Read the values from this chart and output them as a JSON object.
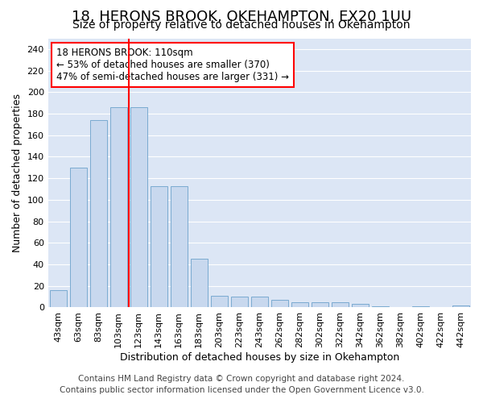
{
  "title": "18, HERONS BROOK, OKEHAMPTON, EX20 1UU",
  "subtitle": "Size of property relative to detached houses in Okehampton",
  "xlabel": "Distribution of detached houses by size in Okehampton",
  "ylabel": "Number of detached properties",
  "footnote1": "Contains HM Land Registry data © Crown copyright and database right 2024.",
  "footnote2": "Contains public sector information licensed under the Open Government Licence v3.0.",
  "categories": [
    "43sqm",
    "63sqm",
    "83sqm",
    "103sqm",
    "123sqm",
    "143sqm",
    "163sqm",
    "183sqm",
    "203sqm",
    "223sqm",
    "243sqm",
    "262sqm",
    "282sqm",
    "302sqm",
    "322sqm",
    "342sqm",
    "362sqm",
    "382sqm",
    "402sqm",
    "422sqm",
    "442sqm"
  ],
  "values": [
    16,
    130,
    174,
    186,
    186,
    113,
    113,
    45,
    11,
    10,
    10,
    7,
    5,
    5,
    5,
    3,
    1,
    0,
    1,
    0,
    2
  ],
  "bar_color": "#c8d8ee",
  "bar_edge_color": "#7aaad0",
  "vline_color": "red",
  "vline_pos": 3.5,
  "annotation_title": "18 HERONS BROOK: 110sqm",
  "annotation_line1": "← 53% of detached houses are smaller (370)",
  "annotation_line2": "47% of semi-detached houses are larger (331) →",
  "ylim": [
    0,
    250
  ],
  "yticks": [
    0,
    20,
    40,
    60,
    80,
    100,
    120,
    140,
    160,
    180,
    200,
    220,
    240
  ],
  "fig_bg_color": "#ffffff",
  "plot_bg_color": "#dce6f5",
  "grid_color": "#ffffff",
  "title_fontsize": 13,
  "subtitle_fontsize": 10,
  "axis_label_fontsize": 9,
  "tick_fontsize": 8,
  "annotation_fontsize": 8.5,
  "footnote_fontsize": 7.5
}
